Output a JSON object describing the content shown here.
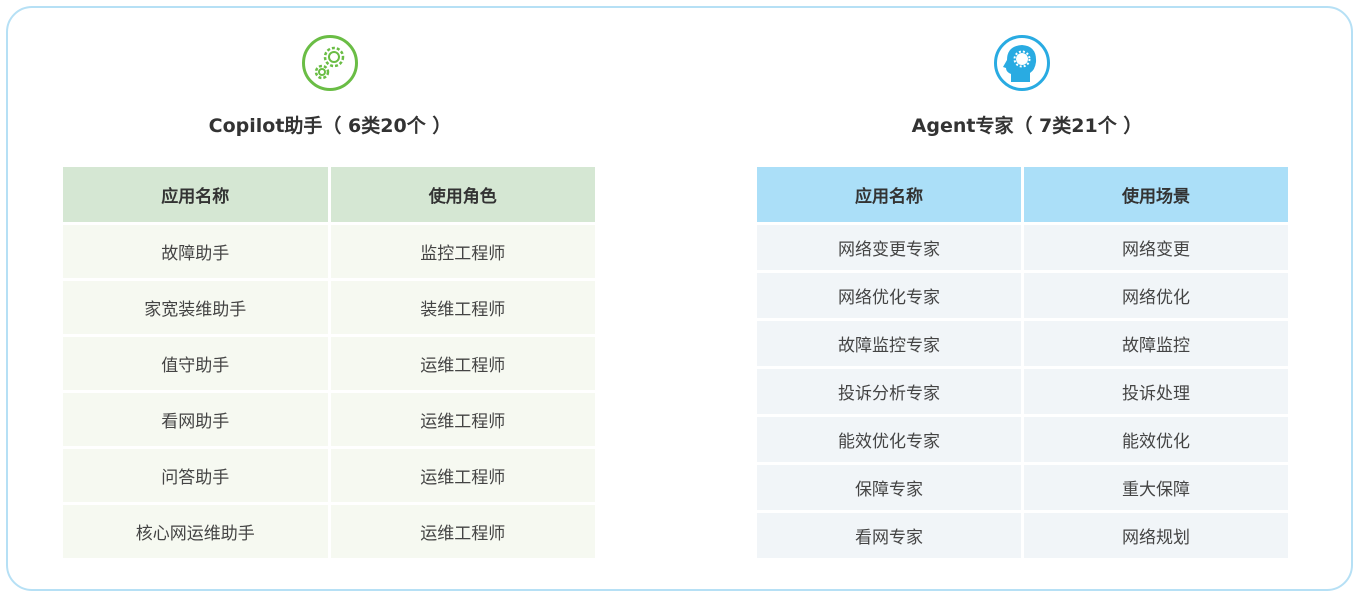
{
  "colors": {
    "copilot_accent": "#6abd45",
    "agent_accent": "#29abe2",
    "frame_border": "#b6e0f5"
  },
  "copilot": {
    "icon": "gears-icon",
    "title": "Copilot助手（ 6类20个 ）",
    "headers": [
      "应用名称",
      "使用角色"
    ],
    "rows": [
      [
        "故障助手",
        "监控工程师"
      ],
      [
        "家宽装维助手",
        "装维工程师"
      ],
      [
        "值守助手",
        "运维工程师"
      ],
      [
        "看网助手",
        "运维工程师"
      ],
      [
        "问答助手",
        "运维工程师"
      ],
      [
        "核心网运维助手",
        "运维工程师"
      ]
    ]
  },
  "agent": {
    "icon": "head-gear-icon",
    "title": "Agent专家（ 7类21个 ）",
    "headers": [
      "应用名称",
      "使用场景"
    ],
    "rows": [
      [
        "网络变更专家",
        "网络变更"
      ],
      [
        "网络优化专家",
        "网络优化"
      ],
      [
        "故障监控专家",
        "故障监控"
      ],
      [
        "投诉分析专家",
        "投诉处理"
      ],
      [
        "能效优化专家",
        "能效优化"
      ],
      [
        "保障专家",
        "重大保障"
      ],
      [
        "看网专家",
        "网络规划"
      ]
    ]
  }
}
